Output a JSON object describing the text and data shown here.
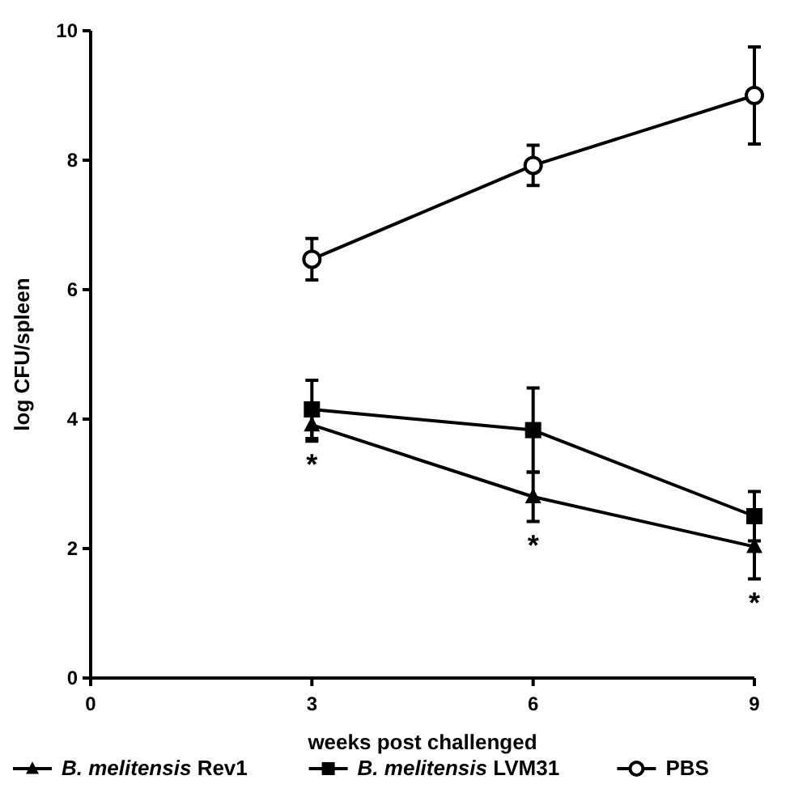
{
  "chart_data": {
    "type": "line",
    "xlabel": "weeks post challenged",
    "ylabel": "log CFU/spleen",
    "xlim": [
      0,
      9
    ],
    "xticks": [
      0,
      3,
      6,
      9
    ],
    "ylim": [
      0,
      10
    ],
    "yticks": [
      0,
      2,
      4,
      6,
      8,
      10
    ],
    "grid": false,
    "legend": "bottom",
    "x": [
      3,
      6,
      9
    ],
    "series": [
      {
        "name": "B. melitensis Rev1",
        "color": "#000000",
        "marker": "triangle",
        "values": [
          3.91,
          2.8,
          2.03
        ],
        "errors": [
          0.25,
          0.38,
          0.5
        ]
      },
      {
        "name": "B. melitensis LVM31",
        "color": "#000000",
        "marker": "square",
        "values": [
          4.15,
          3.83,
          2.5
        ],
        "errors": [
          0.45,
          0.65,
          0.38
        ]
      },
      {
        "name": "PBS",
        "color": "#000000",
        "marker": "circle",
        "values": [
          6.47,
          7.92,
          9.0
        ],
        "errors": [
          0.32,
          0.31,
          0.75
        ]
      }
    ],
    "annotations": [
      "*",
      "*",
      "*"
    ]
  }
}
